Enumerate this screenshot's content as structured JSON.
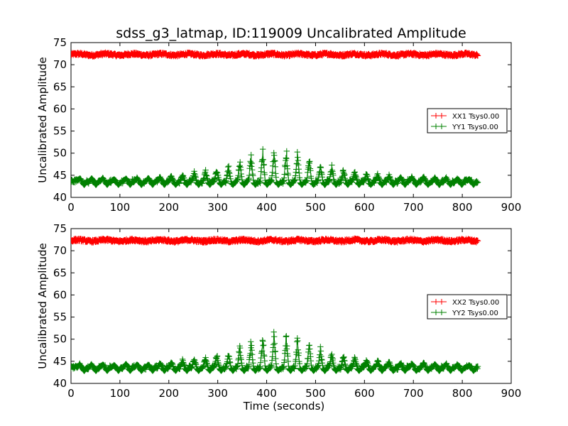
{
  "figure": {
    "title": "sdss_g3_latmap, ID:119009 Uncalibrated Amplitude"
  },
  "chart_data": [
    {
      "type": "scatter",
      "title": "sdss_g3_latmap, ID:119009 Uncalibrated Amplitude",
      "xlabel": "",
      "ylabel": "Uncalibrated Amplitude",
      "xlim": [
        0,
        900
      ],
      "ylim": [
        40,
        75
      ],
      "xticks": [
        0,
        100,
        200,
        300,
        400,
        500,
        600,
        700,
        800,
        900
      ],
      "yticks": [
        40,
        45,
        50,
        55,
        60,
        65,
        70,
        75
      ],
      "grid": false,
      "legend_position": "center-right",
      "marker": "+",
      "x_range": [
        0,
        832
      ],
      "series": [
        {
          "name": "XX1 Tsys0.00",
          "color": "#ff0000",
          "baseline": 72.3,
          "band": [
            71.8,
            72.9
          ],
          "bumps": []
        },
        {
          "name": "YY1 Tsys0.00",
          "color": "#008000",
          "baseline": 43.6,
          "band": [
            42.8,
            44.2
          ],
          "bumps": [
            {
              "x": 18,
              "peak": 44.5
            },
            {
              "x": 42,
              "peak": 44.5
            },
            {
              "x": 65,
              "peak": 44.5
            },
            {
              "x": 88,
              "peak": 44.3
            },
            {
              "x": 112,
              "peak": 44.5
            },
            {
              "x": 135,
              "peak": 44.5
            },
            {
              "x": 158,
              "peak": 44.5
            },
            {
              "x": 182,
              "peak": 44.8
            },
            {
              "x": 205,
              "peak": 45.1
            },
            {
              "x": 228,
              "peak": 45.6
            },
            {
              "x": 252,
              "peak": 46.0
            },
            {
              "x": 275,
              "peak": 46.4
            },
            {
              "x": 298,
              "peak": 47.1
            },
            {
              "x": 322,
              "peak": 47.8
            },
            {
              "x": 345,
              "peak": 49.0
            },
            {
              "x": 368,
              "peak": 50.3
            },
            {
              "x": 392,
              "peak": 51.6
            },
            {
              "x": 415,
              "peak": 52.2
            },
            {
              "x": 440,
              "peak": 52.2
            },
            {
              "x": 463,
              "peak": 51.0
            },
            {
              "x": 487,
              "peak": 49.7
            },
            {
              "x": 510,
              "peak": 48.5
            },
            {
              "x": 533,
              "peak": 47.6
            },
            {
              "x": 557,
              "peak": 46.8
            },
            {
              "x": 580,
              "peak": 46.2
            },
            {
              "x": 604,
              "peak": 45.8
            },
            {
              "x": 627,
              "peak": 45.5
            },
            {
              "x": 650,
              "peak": 45.3
            },
            {
              "x": 674,
              "peak": 45.0
            },
            {
              "x": 697,
              "peak": 44.8
            },
            {
              "x": 721,
              "peak": 44.9
            },
            {
              "x": 744,
              "peak": 44.6
            },
            {
              "x": 767,
              "peak": 44.6
            },
            {
              "x": 790,
              "peak": 44.4
            },
            {
              "x": 814,
              "peak": 44.2
            }
          ]
        }
      ]
    },
    {
      "type": "scatter",
      "title": "",
      "xlabel": "Time (seconds)",
      "ylabel": "Uncalibrated Amplitude",
      "xlim": [
        0,
        900
      ],
      "ylim": [
        40,
        75
      ],
      "xticks": [
        0,
        100,
        200,
        300,
        400,
        500,
        600,
        700,
        800,
        900
      ],
      "yticks": [
        40,
        45,
        50,
        55,
        60,
        65,
        70,
        75
      ],
      "grid": false,
      "legend_position": "center-right",
      "marker": "+",
      "x_range": [
        0,
        832
      ],
      "series": [
        {
          "name": "XX2 Tsys0.00",
          "color": "#ff0000",
          "baseline": 72.3,
          "band": [
            71.8,
            72.9
          ],
          "bumps": []
        },
        {
          "name": "YY2 Tsys0.00",
          "color": "#008000",
          "baseline": 43.6,
          "band": [
            42.8,
            44.2
          ],
          "bumps": [
            {
              "x": 18,
              "peak": 44.6
            },
            {
              "x": 42,
              "peak": 44.5
            },
            {
              "x": 65,
              "peak": 44.5
            },
            {
              "x": 88,
              "peak": 44.3
            },
            {
              "x": 112,
              "peak": 44.6
            },
            {
              "x": 135,
              "peak": 44.5
            },
            {
              "x": 158,
              "peak": 44.5
            },
            {
              "x": 182,
              "peak": 44.9
            },
            {
              "x": 205,
              "peak": 45.2
            },
            {
              "x": 228,
              "peak": 45.7
            },
            {
              "x": 252,
              "peak": 46.0
            },
            {
              "x": 275,
              "peak": 46.5
            },
            {
              "x": 298,
              "peak": 47.2
            },
            {
              "x": 322,
              "peak": 47.8
            },
            {
              "x": 345,
              "peak": 49.0
            },
            {
              "x": 368,
              "peak": 50.2
            },
            {
              "x": 392,
              "peak": 51.6
            },
            {
              "x": 415,
              "peak": 52.2
            },
            {
              "x": 440,
              "peak": 52.1
            },
            {
              "x": 463,
              "peak": 51.0
            },
            {
              "x": 487,
              "peak": 49.6
            },
            {
              "x": 510,
              "peak": 48.4
            },
            {
              "x": 533,
              "peak": 47.5
            },
            {
              "x": 557,
              "peak": 46.8
            },
            {
              "x": 580,
              "peak": 46.1
            },
            {
              "x": 604,
              "peak": 45.7
            },
            {
              "x": 627,
              "peak": 45.5
            },
            {
              "x": 650,
              "peak": 45.2
            },
            {
              "x": 674,
              "peak": 45.0
            },
            {
              "x": 697,
              "peak": 44.8
            },
            {
              "x": 721,
              "peak": 44.9
            },
            {
              "x": 744,
              "peak": 44.6
            },
            {
              "x": 767,
              "peak": 44.6
            },
            {
              "x": 790,
              "peak": 44.4
            },
            {
              "x": 814,
              "peak": 44.2
            }
          ]
        }
      ]
    }
  ]
}
